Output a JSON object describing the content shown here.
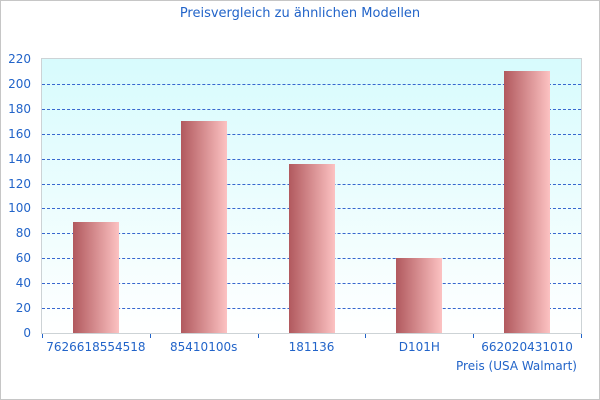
{
  "chart_data": {
    "type": "bar",
    "title": "Preisvergleich zu ähnlichen Modellen",
    "categories": [
      "7626618554518",
      "85410100s",
      "181136",
      "D101H",
      "662020431010"
    ],
    "values": [
      89,
      170,
      136,
      60,
      210
    ],
    "xlabel": "Preis (USA Walmart)",
    "ylabel": "",
    "ylim": [
      0,
      220
    ],
    "ytick_step": 20,
    "grid": "horizontal-dashed",
    "legend": "none"
  },
  "colors": {
    "title_text": "#2264c9",
    "axis_text": "#2264c9",
    "gridline": "#3767cf",
    "tick": "#2264c9",
    "bar_gradient_left": "#b1595e",
    "bar_gradient_right": "#fcc2c2",
    "plot_bg_top": "#d7fbfd",
    "plot_bg_bottom": "#ffffff",
    "plot_border": "#cdd3d6",
    "canvas_border": "#c6c6c6"
  }
}
